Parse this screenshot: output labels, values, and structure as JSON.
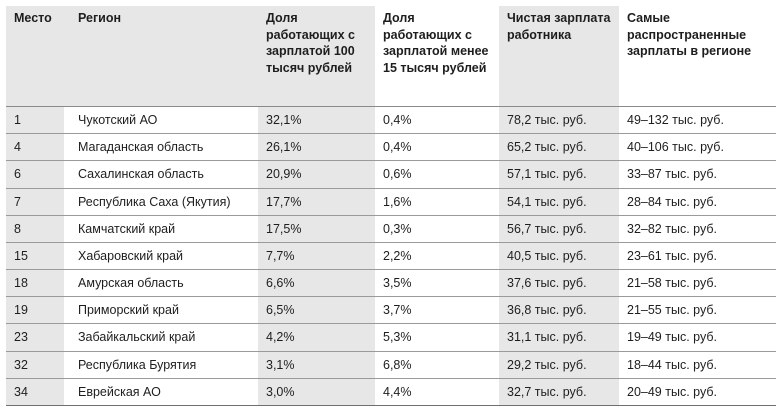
{
  "table": {
    "headers": [
      "Место",
      "Регион",
      "Доля работающих с зарплатой 100 тысяч рублей",
      "Доля работающих с зарплатой менее 15 тысяч рублей",
      "Чистая зарплата работника",
      "Самые распространенные зарплаты в регионе"
    ],
    "rows": [
      [
        "1",
        "Чукотский АО",
        "32,1%",
        "0,4%",
        "78,2 тыс. руб.",
        "49–132 тыс. руб."
      ],
      [
        "4",
        "Магаданская область",
        "26,1%",
        "0,4%",
        "65,2 тыс. руб.",
        "40–106 тыс. руб."
      ],
      [
        "6",
        "Сахалинская область",
        "20,9%",
        "0,6%",
        "57,1 тыс. руб.",
        "33–87 тыс. руб."
      ],
      [
        "7",
        "Республика Саха (Якутия)",
        "17,7%",
        "1,6%",
        "54,1 тыс. руб.",
        "28–84 тыс. руб."
      ],
      [
        "8",
        "Камчатский край",
        "17,5%",
        "0,3%",
        "56,7 тыс. руб.",
        "32–82 тыс. руб."
      ],
      [
        "15",
        "Хабаровский край",
        "7,7%",
        "2,2%",
        "40,5 тыс. руб.",
        "23–61 тыс. руб."
      ],
      [
        "18",
        "Амурская область",
        "6,6%",
        "3,5%",
        "37,6 тыс. руб.",
        "21–58 тыс. руб."
      ],
      [
        "19",
        "Приморский край",
        "6,5%",
        "3,7%",
        "36,8 тыс. руб.",
        "21–55 тыс. руб."
      ],
      [
        "23",
        "Забайкальский край",
        "4,2%",
        "5,3%",
        "31,1 тыс. руб.",
        "19–49 тыс. руб."
      ],
      [
        "32",
        "Республика Бурятия",
        "3,1%",
        "6,8%",
        "29,2 тыс. руб.",
        "18–44 тыс. руб."
      ],
      [
        "34",
        "Еврейская АО",
        "3,0%",
        "4,4%",
        "32,7 тыс. руб.",
        "20–49 тыс. руб."
      ]
    ],
    "colors": {
      "shade": "#e7e7e7",
      "white": "#ffffff",
      "text": "#1e1e1e",
      "rule": "#9a9a9a"
    }
  }
}
